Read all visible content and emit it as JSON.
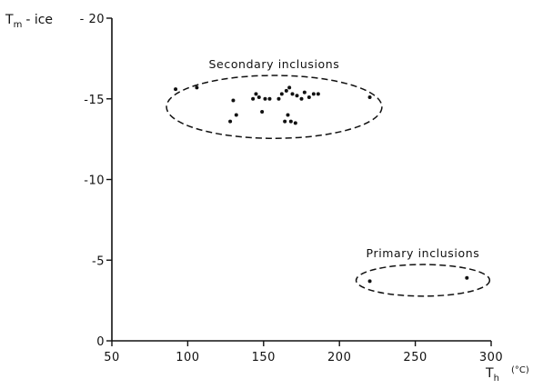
{
  "chart_data": {
    "type": "scatter",
    "xlim": [
      50,
      300
    ],
    "ylim": [
      0,
      -20
    ],
    "x_ticks": [
      50,
      100,
      150,
      200,
      250,
      300
    ],
    "y_ticks": [
      0,
      -5,
      -10,
      -15,
      -20
    ],
    "x_tick_labels": [
      "50",
      "100",
      "150",
      "200",
      "250",
      "300"
    ],
    "y_tick_labels": [
      "0",
      "-5",
      "-10",
      "-15",
      "- 20"
    ],
    "xlabel_main": "T",
    "xlabel_sub": "h",
    "xlabel_unit": "(°C)",
    "ylabel_main": "T",
    "ylabel_sub": "m",
    "ylabel_rest": "- ice",
    "series": [
      {
        "annotation": "Secondary inclusions",
        "envelope": {
          "cx": 157,
          "cy": -14.5,
          "rx": 71,
          "ry": 1.95
        },
        "points": [
          [
            92,
            -15.6
          ],
          [
            106,
            -15.7
          ],
          [
            128,
            -13.6
          ],
          [
            130,
            -14.9
          ],
          [
            132,
            -14.0
          ],
          [
            143,
            -15.0
          ],
          [
            145,
            -15.3
          ],
          [
            147,
            -15.1
          ],
          [
            149,
            -14.2
          ],
          [
            151,
            -15.0
          ],
          [
            154,
            -15.0
          ],
          [
            160,
            -15.0
          ],
          [
            162,
            -15.3
          ],
          [
            164,
            -13.6
          ],
          [
            165,
            -15.5
          ],
          [
            166,
            -14.0
          ],
          [
            167,
            -15.7
          ],
          [
            168,
            -13.6
          ],
          [
            169,
            -15.3
          ],
          [
            171,
            -13.5
          ],
          [
            172,
            -15.2
          ],
          [
            175,
            -15.0
          ],
          [
            177,
            -15.4
          ],
          [
            180,
            -15.1
          ],
          [
            183,
            -15.3
          ],
          [
            186,
            -15.3
          ],
          [
            220,
            -15.1
          ]
        ]
      },
      {
        "annotation": "Primary inclusions",
        "envelope": {
          "cx": 255,
          "cy": -3.75,
          "rx": 44,
          "ry": 0.98
        },
        "points": [
          [
            220,
            -3.7
          ],
          [
            284,
            -3.9
          ]
        ]
      }
    ]
  }
}
